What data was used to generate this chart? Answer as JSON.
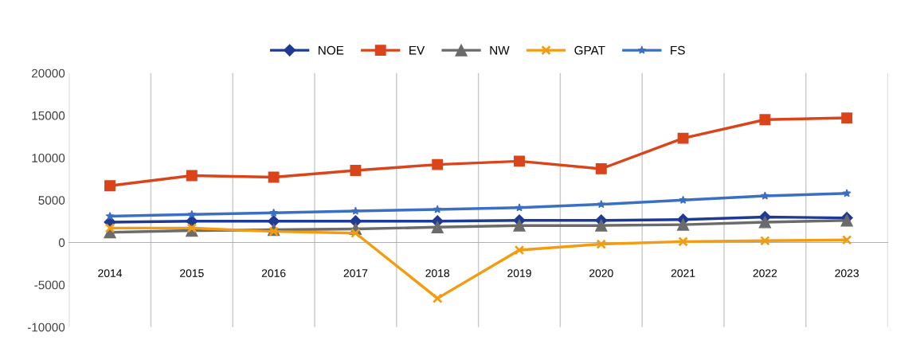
{
  "chart_data": {
    "type": "line",
    "categories": [
      "2014",
      "2015",
      "2016",
      "2017",
      "2018",
      "2019",
      "2020",
      "2021",
      "2022",
      "2023"
    ],
    "series": [
      {
        "name": "NOE",
        "color": "#1f3a93",
        "marker": "diamond",
        "values": [
          2400,
          2500,
          2500,
          2500,
          2500,
          2600,
          2600,
          2700,
          3000,
          2900
        ]
      },
      {
        "name": "EV",
        "color": "#d9441a",
        "marker": "square",
        "values": [
          6700,
          7900,
          7700,
          8500,
          9200,
          9600,
          8700,
          12300,
          14500,
          14700
        ]
      },
      {
        "name": "NW",
        "color": "#6b6b6b",
        "marker": "triangle",
        "values": [
          1200,
          1400,
          1500,
          1600,
          1800,
          2000,
          2000,
          2100,
          2400,
          2600
        ]
      },
      {
        "name": "GPAT",
        "color": "#f39c12",
        "marker": "cross",
        "values": [
          1700,
          1700,
          1300,
          1100,
          -6600,
          -900,
          -200,
          100,
          200,
          300
        ]
      },
      {
        "name": "FS",
        "color": "#3a6fc4",
        "marker": "star",
        "values": [
          3100,
          3300,
          3500,
          3700,
          3900,
          4100,
          4500,
          5000,
          5500,
          5800
        ]
      }
    ],
    "ylim": [
      -10000,
      20000
    ],
    "yticks": [
      -10000,
      -5000,
      0,
      5000,
      10000,
      15000,
      20000
    ],
    "grid": "x",
    "legend": "top"
  }
}
